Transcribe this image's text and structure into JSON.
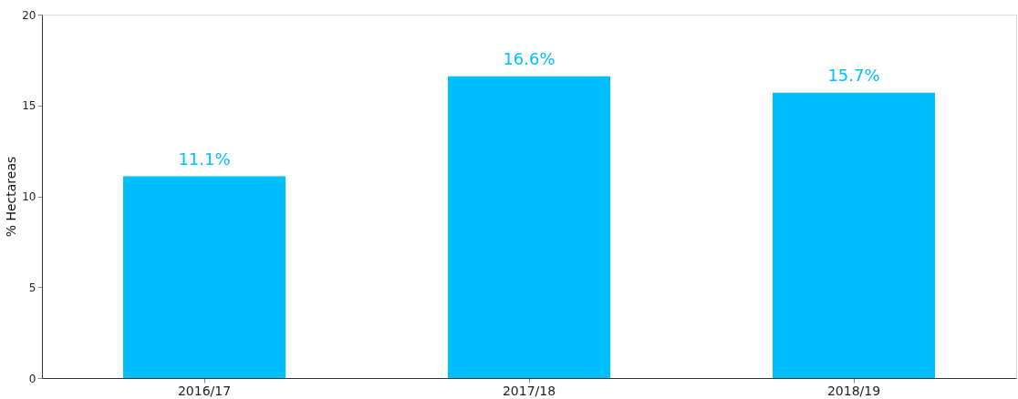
{
  "chart_data": {
    "type": "bar",
    "ylabel": "% Hectareas",
    "categories": [
      "2016/17",
      "2017/18",
      "2018/19"
    ],
    "values": [
      11.1,
      16.6,
      15.7
    ],
    "value_labels": [
      "11.1%",
      "16.6%",
      "15.7%"
    ],
    "color": "#00bfff",
    "ylim": [
      0,
      20
    ],
    "yticks": [
      0,
      5,
      10,
      15,
      20
    ],
    "grid": false
  }
}
